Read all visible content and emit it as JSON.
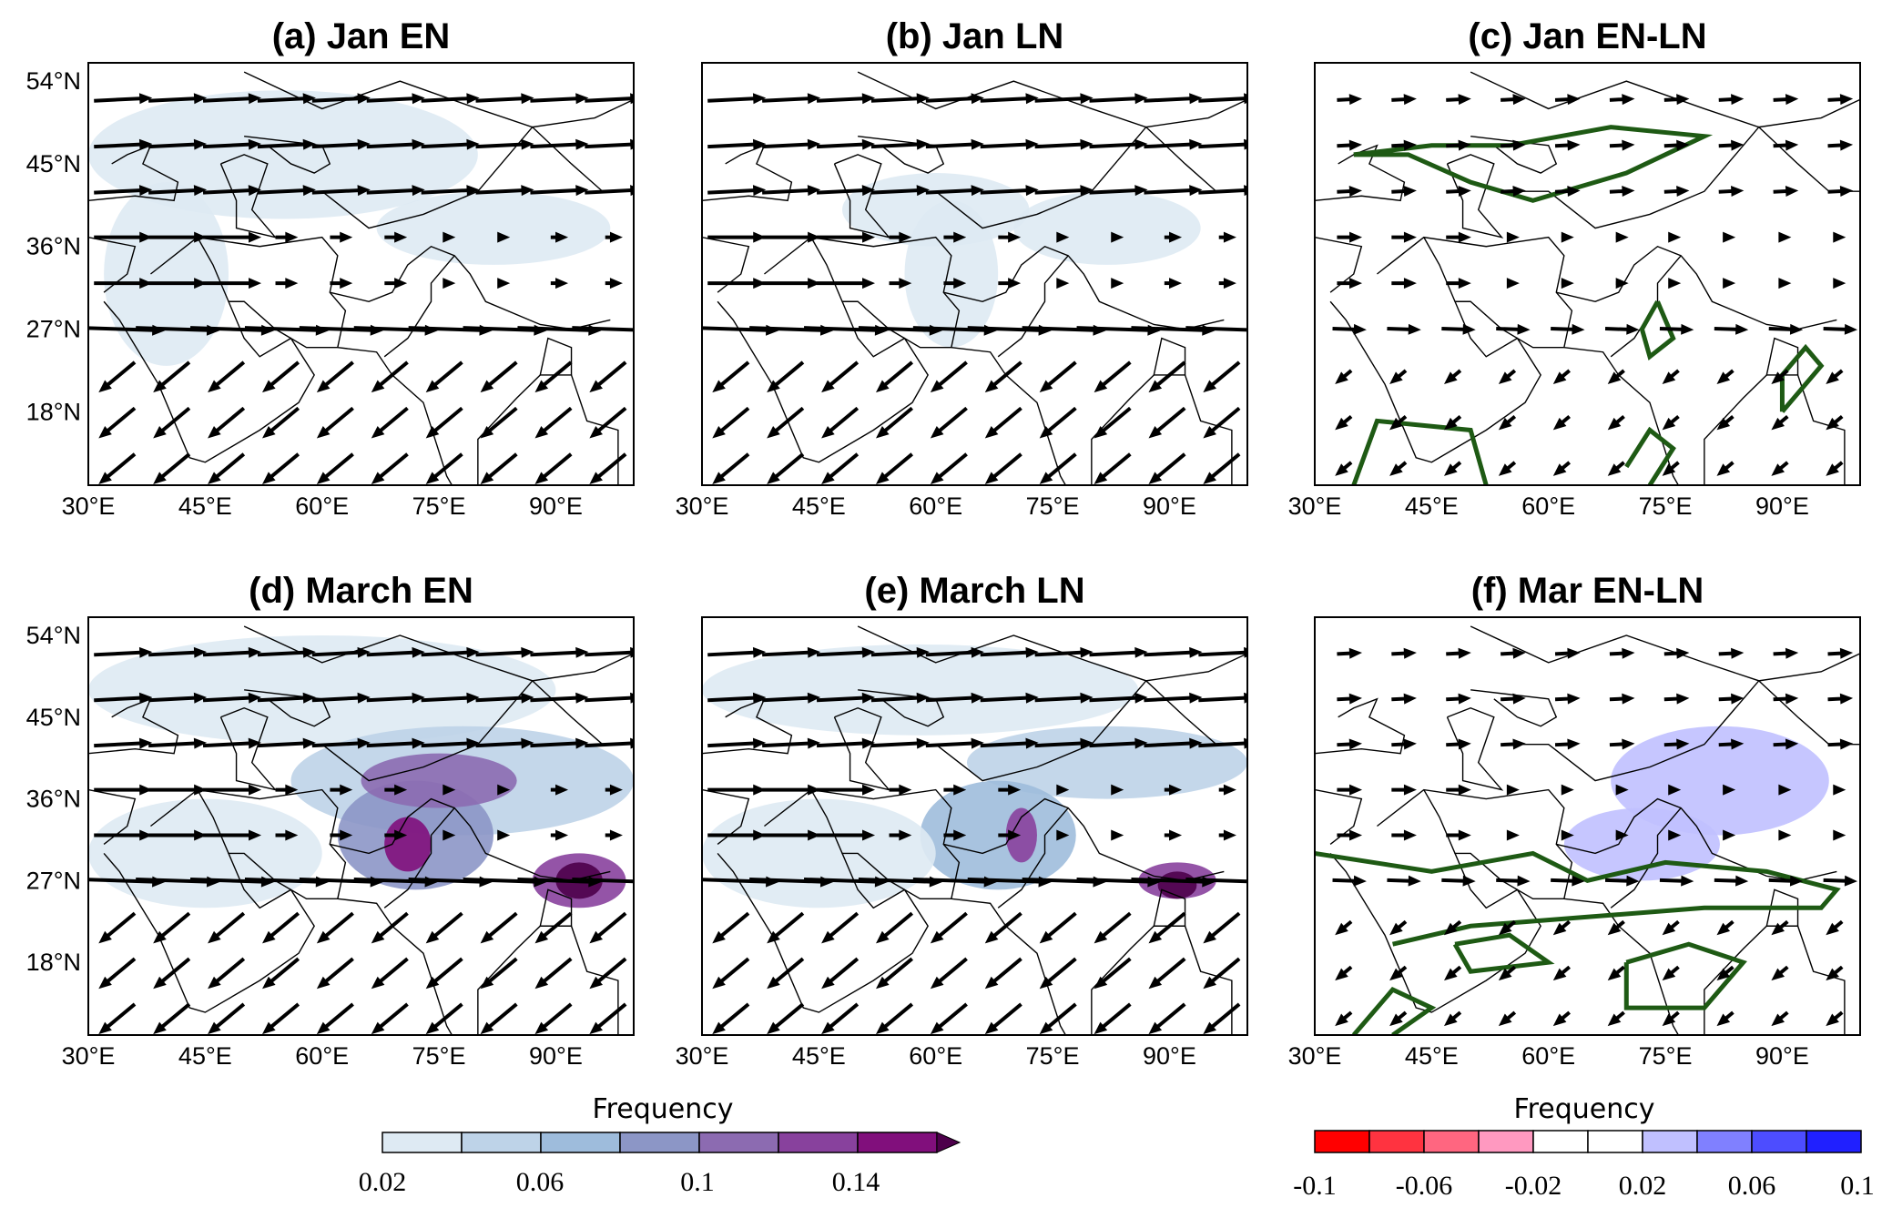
{
  "chart_data": {
    "type": "heatmap",
    "panels": [
      {
        "title": "(a) Jan EN",
        "colorbar": "frequency"
      },
      {
        "title": "(b) Jan LN",
        "colorbar": "frequency"
      },
      {
        "title": "(c) Jan EN-LN",
        "colorbar": "difference"
      },
      {
        "title": "(d) March EN",
        "colorbar": "frequency"
      },
      {
        "title": "(e) March LN",
        "colorbar": "frequency"
      },
      {
        "title": "(f) Mar EN-LN",
        "colorbar": "difference"
      }
    ],
    "lat_ticks": [
      "54°N",
      "45°N",
      "36°N",
      "27°N",
      "18°N"
    ],
    "lat_values": [
      54,
      45,
      36,
      27,
      18
    ],
    "lon_ticks": [
      "30°E",
      "45°E",
      "60°E",
      "75°E",
      "90°E"
    ],
    "lon_values": [
      30,
      45,
      60,
      75,
      90
    ],
    "lon_range": [
      30,
      100
    ],
    "lat_range": [
      10,
      56
    ],
    "overlay": "wind vectors; green contours in difference panels",
    "contour_color": "#1e5a14",
    "colorbar_frequency": {
      "title": "Frequency",
      "labels": [
        "0.02",
        "0.06",
        "0.1",
        "0.14"
      ],
      "colors": [
        "#deeaf3",
        "#bed3e8",
        "#9ebcdc",
        "#8c96c6",
        "#8c6bb1",
        "#88419d",
        "#810f7c",
        "#4d004b"
      ],
      "extend": "max"
    },
    "colorbar_difference": {
      "title": "Frequency",
      "labels": [
        "-0.1",
        "-0.06",
        "-0.02",
        "0.02",
        "0.06",
        "0.1"
      ],
      "colors": [
        "#ff0000",
        "#ff3340",
        "#ff6680",
        "#ff99c0",
        "#ffffff",
        "#ffffff",
        "#c0c0ff",
        "#8080ff",
        "#4d4dff",
        "#2020ff"
      ]
    }
  }
}
